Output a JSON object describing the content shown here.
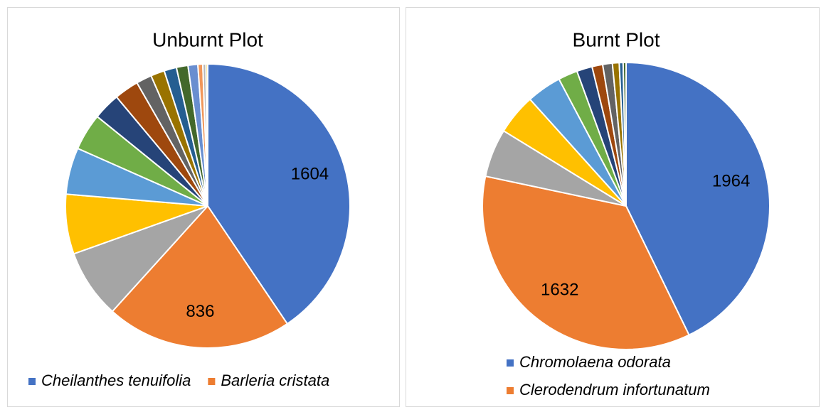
{
  "chart_data": [
    {
      "type": "pie",
      "title": "Unburnt Plot",
      "categories": [
        "Cheilanthes tenuifolia",
        "Barleria cristata",
        null,
        null,
        null,
        null,
        null,
        null,
        null,
        null,
        null,
        null,
        null,
        null,
        null,
        null
      ],
      "values": [
        1604,
        836,
        310,
        269,
        210,
        166,
        122,
        110,
        70,
        62,
        56,
        52,
        44,
        22,
        14,
        8
      ],
      "colors": [
        "#4472C4",
        "#ED7D31",
        "#A5A5A5",
        "#FFC000",
        "#5B9BD5",
        "#70AD47",
        "#264478",
        "#9E480E",
        "#636363",
        "#997300",
        "#255E91",
        "#43682B",
        "#698ED0",
        "#F1975A",
        "#B7B7B7",
        "#FFCD33"
      ],
      "legend": "bottom"
    },
    {
      "type": "pie",
      "title": "Burnt Plot",
      "categories": [
        "Chromolaena odorata",
        "Clerodendrum infortunatum",
        null,
        null,
        null,
        null,
        null,
        null,
        null,
        null,
        null,
        null
      ],
      "values": [
        1964,
        1632,
        250,
        210,
        180,
        100,
        80,
        55,
        50,
        35,
        20,
        15
      ],
      "colors": [
        "#4472C4",
        "#ED7D31",
        "#A5A5A5",
        "#FFC000",
        "#5B9BD5",
        "#70AD47",
        "#264478",
        "#9E480E",
        "#636363",
        "#997300",
        "#255E91",
        "#43682B"
      ],
      "legend": "bottom"
    }
  ]
}
